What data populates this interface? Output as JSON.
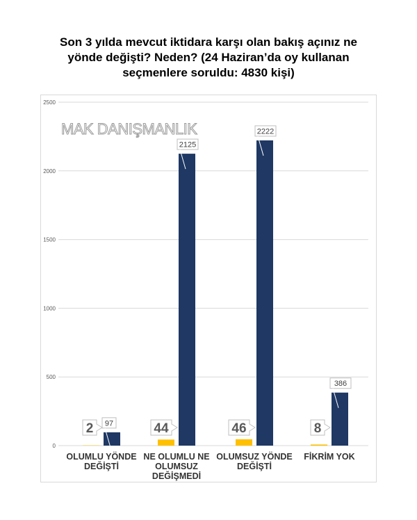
{
  "title_lines": [
    "Son 3 yılda mevcut iktidara karşı olan bakış açınız ne",
    "yönde değişti?  Neden? (24 Haziran’da oy kullanan",
    "seçmenlere soruldu: 4830 kişi)"
  ],
  "watermark": "MAK DANIŞMANLIK",
  "colors": {
    "series_main": "#1f3864",
    "series_secondary": "#ffc000",
    "grid": "#d9d9d9"
  },
  "chart_data": {
    "type": "bar",
    "title": "Son 3 yılda mevcut iktidara karşı olan bakış açınız ne yönde değişti?  Neden? (24 Haziran’da oy kullanan seçmenlere soruldu: 4830 kişi)",
    "categories": [
      [
        "OLUMLU YÖNDE",
        "DEĞİŞTİ"
      ],
      [
        "NE OLUMLU NE",
        "OLUMSUZ",
        "DEĞİŞMEDİ"
      ],
      [
        "OLUMSUZ YÖNDE",
        "DEĞİŞTİ"
      ],
      [
        "FİKRİM YOK"
      ]
    ],
    "series": [
      {
        "values": [
          2,
          44,
          46,
          8
        ],
        "labels": [
          "2",
          "44",
          "46",
          "8"
        ],
        "color": "#ffc000"
      },
      {
        "values": [
          97,
          2125,
          2222,
          386
        ],
        "labels": [
          "97",
          "2125",
          "2222",
          "386"
        ],
        "color": "#1f3864"
      }
    ],
    "ylim": [
      0,
      2500
    ],
    "yticks": [
      "0",
      "500",
      "1000",
      "1500",
      "2000",
      "2500"
    ],
    "grid": true,
    "xlabel": "",
    "ylabel": ""
  }
}
